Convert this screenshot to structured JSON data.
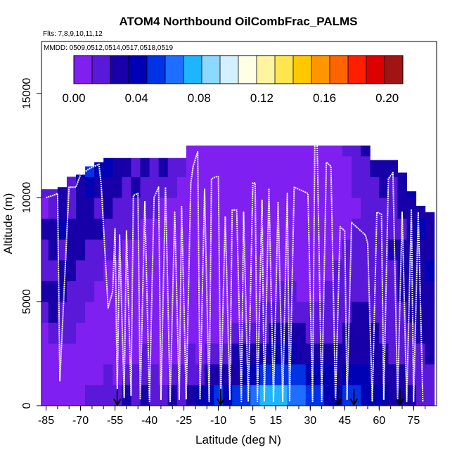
{
  "chart_data": {
    "type": "heatmap",
    "title": "ATOM4 Northbound OilCombFrac_PALMS",
    "flights_label": "Flts: 7,8,9,10,11,12",
    "dates_label": "MMDD: 0509,0512,0514,0517,0518,0519",
    "xlabel": "Latitude (deg N)",
    "ylabel": "Altitude (m)",
    "xlim": [
      -87,
      85
    ],
    "ylim": [
      0,
      17500
    ],
    "x_ticks": [
      -85,
      -70,
      -55,
      -40,
      -25,
      -10,
      5,
      15,
      30,
      45,
      60,
      75
    ],
    "y_ticks": [
      0,
      5000,
      10000,
      15000
    ],
    "colorbar": {
      "range": [
        0,
        0.21
      ],
      "tick_values": [
        0.0,
        0.04,
        0.08,
        0.12,
        0.16,
        0.2
      ],
      "tick_labels": [
        "0.00",
        "0.04",
        "0.08",
        "0.12",
        "0.16",
        "0.20"
      ],
      "colors": [
        "#7F1FF0",
        "#5A18D8",
        "#1800A8",
        "#0000B4",
        "#0032E6",
        "#1E6EFF",
        "#1EB4FF",
        "#8CD8FF",
        "#D2F0FF",
        "#FFFFE6",
        "#FFF5A0",
        "#FFE650",
        "#FFC800",
        "#FF9600",
        "#FF6400",
        "#FF1E00",
        "#DC0000",
        "#A01414"
      ]
    },
    "curtain_columns": [
      {
        "lat": -86,
        "top": 10400,
        "vals": [
          0.0,
          0.0,
          0.0,
          0.01,
          0.02,
          0.03,
          0.02,
          0.02,
          0.03,
          0.01,
          0.02
        ]
      },
      {
        "lat": -82,
        "top": 10400,
        "vals": [
          0.0,
          0.0,
          0.01,
          0.02,
          0.03,
          0.03,
          0.02,
          0.03,
          0.03,
          0.02,
          0.02
        ]
      },
      {
        "lat": -78,
        "top": 10500,
        "vals": [
          0.0,
          0.0,
          0.01,
          0.02,
          0.02,
          0.03,
          0.03,
          0.02,
          0.04,
          0.03,
          0.03
        ]
      },
      {
        "lat": -74,
        "top": 10800,
        "vals": [
          0.01,
          0.0,
          0.01,
          0.02,
          0.02,
          0.02,
          0.03,
          0.03,
          0.03,
          0.02,
          0.02,
          0.04
        ]
      },
      {
        "lat": -70,
        "top": 11100,
        "vals": [
          0.01,
          0.0,
          0.0,
          0.01,
          0.02,
          0.02,
          0.02,
          0.03,
          0.03,
          0.03,
          0.03,
          0.04
        ]
      },
      {
        "lat": -66,
        "top": 11500,
        "vals": [
          0.02,
          0.01,
          0.0,
          0.01,
          0.01,
          0.02,
          0.02,
          0.02,
          0.03,
          0.03,
          0.04,
          0.05
        ]
      },
      {
        "lat": -62,
        "top": 11700,
        "vals": [
          0.02,
          0.01,
          0.0,
          0.01,
          0.01,
          0.01,
          0.02,
          0.02,
          0.03,
          0.02,
          0.03,
          0.04
        ]
      },
      {
        "lat": -58,
        "top": 11900,
        "vals": [
          0.02,
          0.02,
          0.01,
          0.0,
          0.01,
          0.01,
          0.01,
          0.02,
          0.02,
          0.03,
          0.03,
          0.04
        ]
      },
      {
        "lat": -54,
        "top": 11900,
        "vals": [
          0.02,
          0.01,
          0.0,
          0.0,
          0.0,
          0.01,
          0.01,
          0.02,
          0.02,
          0.02,
          0.03,
          0.03
        ]
      },
      {
        "lat": -50,
        "top": 11900,
        "vals": [
          0.03,
          0.02,
          0.01,
          0.01,
          0.01,
          0.0,
          0.01,
          0.01,
          0.02,
          0.02,
          0.02,
          0.03
        ]
      },
      {
        "lat": -46,
        "top": 11900,
        "vals": [
          0.02,
          0.02,
          0.01,
          0.01,
          0.0,
          0.01,
          0.01,
          0.01,
          0.02,
          0.02,
          0.03,
          0.02
        ]
      },
      {
        "lat": -42,
        "top": 11900,
        "vals": [
          0.03,
          0.02,
          0.02,
          0.01,
          0.01,
          0.0,
          0.01,
          0.01,
          0.01,
          0.02,
          0.02,
          0.03
        ]
      },
      {
        "lat": -38,
        "top": 11900,
        "vals": [
          0.02,
          0.02,
          0.01,
          0.0,
          0.0,
          0.0,
          0.0,
          0.01,
          0.01,
          0.02,
          0.02,
          0.02
        ]
      },
      {
        "lat": -34,
        "top": 11900,
        "vals": [
          0.02,
          0.01,
          0.01,
          0.0,
          0.0,
          0.0,
          0.01,
          0.01,
          0.01,
          0.01,
          0.02,
          0.03
        ]
      },
      {
        "lat": -30,
        "top": 11900,
        "vals": [
          0.03,
          0.02,
          0.01,
          0.0,
          0.0,
          0.0,
          0.0,
          0.0,
          0.01,
          0.01,
          0.02,
          0.02
        ]
      },
      {
        "lat": -26,
        "top": 11900,
        "vals": [
          0.02,
          0.02,
          0.01,
          0.01,
          0.0,
          0.0,
          0.0,
          0.0,
          0.01,
          0.01,
          0.01,
          0.02
        ]
      },
      {
        "lat": -22,
        "top": 12500,
        "vals": [
          0.03,
          0.02,
          0.02,
          0.01,
          0.0,
          0.0,
          0.0,
          0.0,
          0.0,
          0.0,
          0.0,
          0.0,
          0.0
        ]
      },
      {
        "lat": -18,
        "top": 12500,
        "vals": [
          0.04,
          0.02,
          0.01,
          0.0,
          0.0,
          0.0,
          0.0,
          0.0,
          0.0,
          0.0,
          0.0,
          0.0,
          0.0
        ]
      },
      {
        "lat": -14,
        "top": 12500,
        "vals": [
          0.04,
          0.03,
          0.02,
          0.01,
          0.0,
          0.0,
          0.0,
          0.0,
          0.0,
          0.0,
          0.0,
          0.0,
          0.0
        ]
      },
      {
        "lat": -10,
        "top": 12500,
        "vals": [
          0.05,
          0.03,
          0.02,
          0.01,
          0.0,
          0.0,
          0.0,
          0.01,
          0.0,
          0.0,
          0.0,
          0.0,
          0.0
        ]
      },
      {
        "lat": -6,
        "top": 12500,
        "vals": [
          0.04,
          0.03,
          0.02,
          0.01,
          0.01,
          0.0,
          0.0,
          0.01,
          0.01,
          0.0,
          0.0,
          0.0,
          0.0
        ]
      },
      {
        "lat": -2,
        "top": 12500,
        "vals": [
          0.05,
          0.03,
          0.03,
          0.02,
          0.01,
          0.0,
          0.01,
          0.01,
          0.0,
          0.0,
          0.0,
          0.0,
          0.01
        ]
      },
      {
        "lat": 2,
        "top": 12500,
        "vals": [
          0.05,
          0.04,
          0.03,
          0.02,
          0.01,
          0.01,
          0.0,
          0.01,
          0.01,
          0.0,
          0.0,
          0.0,
          0.01
        ]
      },
      {
        "lat": 6,
        "top": 12500,
        "vals": [
          0.06,
          0.04,
          0.03,
          0.02,
          0.01,
          0.01,
          0.01,
          0.0,
          0.01,
          0.01,
          0.0,
          0.01,
          0.01
        ]
      },
      {
        "lat": 10,
        "top": 12500,
        "vals": [
          0.07,
          0.05,
          0.03,
          0.02,
          0.02,
          0.01,
          0.01,
          0.01,
          0.01,
          0.0,
          0.01,
          0.01,
          0.01
        ]
      },
      {
        "lat": 14,
        "top": 12500,
        "vals": [
          0.08,
          0.05,
          0.04,
          0.03,
          0.02,
          0.01,
          0.01,
          0.01,
          0.01,
          0.01,
          0.01,
          0.01,
          0.01
        ]
      },
      {
        "lat": 18,
        "top": 12500,
        "vals": [
          0.07,
          0.05,
          0.04,
          0.03,
          0.02,
          0.02,
          0.01,
          0.01,
          0.01,
          0.01,
          0.01,
          0.01,
          0.0
        ]
      },
      {
        "lat": 22,
        "top": 12500,
        "vals": [
          0.06,
          0.05,
          0.04,
          0.03,
          0.02,
          0.02,
          0.01,
          0.01,
          0.01,
          0.01,
          0.01,
          0.01,
          0.0
        ]
      },
      {
        "lat": 26,
        "top": 12500,
        "vals": [
          0.06,
          0.05,
          0.03,
          0.03,
          0.02,
          0.01,
          0.01,
          0.01,
          0.01,
          0.01,
          0.0,
          0.0,
          0.0
        ]
      },
      {
        "lat": 30,
        "top": 12500,
        "vals": [
          0.05,
          0.04,
          0.03,
          0.02,
          0.02,
          0.01,
          0.01,
          0.01,
          0.01,
          0.01,
          0.0,
          0.0,
          0.0
        ]
      },
      {
        "lat": 34,
        "top": 12500,
        "vals": [
          0.05,
          0.04,
          0.03,
          0.02,
          0.02,
          0.01,
          0.01,
          0.01,
          0.01,
          0.0,
          0.0,
          0.0,
          0.0
        ]
      },
      {
        "lat": 38,
        "top": 12500,
        "vals": [
          0.04,
          0.04,
          0.03,
          0.02,
          0.02,
          0.02,
          0.01,
          0.01,
          0.01,
          0.0,
          0.0,
          0.01,
          0.0
        ]
      },
      {
        "lat": 42,
        "top": 12500,
        "vals": [
          0.04,
          0.03,
          0.03,
          0.02,
          0.02,
          0.02,
          0.02,
          0.01,
          0.01,
          0.01,
          0.01,
          0.01,
          0.01
        ]
      },
      {
        "lat": 46,
        "top": 12500,
        "vals": [
          0.05,
          0.04,
          0.03,
          0.03,
          0.02,
          0.02,
          0.02,
          0.02,
          0.01,
          0.01,
          0.01,
          0.01,
          0.02
        ]
      },
      {
        "lat": 50,
        "top": 12500,
        "vals": [
          0.05,
          0.04,
          0.03,
          0.03,
          0.03,
          0.02,
          0.02,
          0.02,
          0.02,
          0.01,
          0.02,
          0.02,
          0.02
        ]
      },
      {
        "lat": 54,
        "top": 12500,
        "vals": [
          0.04,
          0.04,
          0.03,
          0.03,
          0.03,
          0.02,
          0.02,
          0.02,
          0.02,
          0.02,
          0.02,
          0.02,
          0.03
        ]
      },
      {
        "lat": 58,
        "top": 11800,
        "vals": [
          0.04,
          0.03,
          0.03,
          0.03,
          0.02,
          0.02,
          0.02,
          0.02,
          0.02,
          0.02,
          0.02,
          0.03
        ]
      },
      {
        "lat": 62,
        "top": 11800,
        "vals": [
          0.04,
          0.03,
          0.03,
          0.02,
          0.02,
          0.02,
          0.02,
          0.02,
          0.02,
          0.02,
          0.03,
          0.03
        ]
      },
      {
        "lat": 66,
        "top": 11800,
        "vals": [
          0.03,
          0.03,
          0.02,
          0.02,
          0.02,
          0.02,
          0.02,
          0.03,
          0.02,
          0.02,
          0.02,
          0.03
        ]
      },
      {
        "lat": 70,
        "top": 11200,
        "vals": [
          0.03,
          0.03,
          0.02,
          0.02,
          0.02,
          0.03,
          0.03,
          0.03,
          0.02,
          0.03,
          0.03,
          0.03
        ]
      },
      {
        "lat": 74,
        "top": 10300,
        "vals": [
          0.03,
          0.02,
          0.02,
          0.02,
          0.03,
          0.03,
          0.03,
          0.03,
          0.03,
          0.03,
          0.04
        ]
      },
      {
        "lat": 78,
        "top": 9600,
        "vals": [
          0.02,
          0.02,
          0.02,
          0.03,
          0.03,
          0.03,
          0.03,
          0.03,
          0.04,
          0.03
        ]
      },
      {
        "lat": 82,
        "top": 9300,
        "vals": [
          0.02,
          0.02,
          0.03,
          0.03,
          0.03,
          0.03,
          0.04,
          0.03,
          0.03,
          0.03
        ]
      }
    ],
    "flight_track": [
      [
        -85,
        10000
      ],
      [
        -82,
        10100
      ],
      [
        -80,
        10200
      ],
      [
        -79,
        1200
      ],
      [
        -75,
        10500
      ],
      [
        -72,
        10500
      ],
      [
        -70,
        11100
      ],
      [
        -66,
        11400
      ],
      [
        -62,
        11600
      ],
      [
        -61,
        10600
      ],
      [
        -60,
        8600
      ],
      [
        -58,
        4700
      ],
      [
        -56,
        5500
      ],
      [
        -55,
        8500
      ],
      [
        -54,
        700
      ],
      [
        -53,
        8200
      ],
      [
        -51,
        400
      ],
      [
        -50,
        8400
      ],
      [
        -48,
        500
      ],
      [
        -47,
        10100
      ],
      [
        -45,
        10200
      ],
      [
        -44,
        300
      ],
      [
        -42,
        9800
      ],
      [
        -40,
        200
      ],
      [
        -38,
        10000
      ],
      [
        -36,
        10500
      ],
      [
        -35,
        300
      ],
      [
        -33,
        10500
      ],
      [
        -31,
        200
      ],
      [
        -29,
        9300
      ],
      [
        -27,
        300
      ],
      [
        -26,
        9600
      ],
      [
        -24,
        300
      ],
      [
        -22,
        10700
      ],
      [
        -21,
        11500
      ],
      [
        -19,
        12200
      ],
      [
        -18,
        300
      ],
      [
        -16,
        10400
      ],
      [
        -14,
        200
      ],
      [
        -13,
        10900
      ],
      [
        -11,
        11000
      ],
      [
        -10,
        11000
      ],
      [
        -9,
        200
      ],
      [
        -7,
        9100
      ],
      [
        -5,
        300
      ],
      [
        -4,
        9400
      ],
      [
        -2,
        9400
      ],
      [
        0,
        200
      ],
      [
        1,
        9300
      ],
      [
        3,
        200
      ],
      [
        5,
        10700
      ],
      [
        6,
        10700
      ],
      [
        7,
        200
      ],
      [
        9,
        9900
      ],
      [
        10,
        200
      ],
      [
        12,
        10400
      ],
      [
        14,
        200
      ],
      [
        16,
        9800
      ],
      [
        18,
        200
      ],
      [
        20,
        10200
      ],
      [
        21,
        200
      ],
      [
        23,
        10500
      ],
      [
        25,
        10400
      ],
      [
        27,
        10300
      ],
      [
        29,
        10200
      ],
      [
        31,
        200
      ],
      [
        32,
        12800
      ],
      [
        33,
        12600
      ],
      [
        35,
        200
      ],
      [
        37,
        11700
      ],
      [
        39,
        11500
      ],
      [
        41,
        200
      ],
      [
        43,
        8600
      ],
      [
        45,
        8400
      ],
      [
        46,
        300
      ],
      [
        48,
        8800
      ],
      [
        50,
        8600
      ],
      [
        52,
        8400
      ],
      [
        54,
        8200
      ],
      [
        55,
        7800
      ],
      [
        57,
        200
      ],
      [
        59,
        9300
      ],
      [
        61,
        9200
      ],
      [
        62,
        300
      ],
      [
        64,
        10900
      ],
      [
        66,
        11200
      ],
      [
        68,
        300
      ],
      [
        70,
        9300
      ],
      [
        72,
        200
      ],
      [
        74,
        9400
      ],
      [
        75,
        200
      ],
      [
        77,
        9300
      ],
      [
        79,
        200
      ]
    ],
    "arrow_markers_lat": [
      -54,
      -9,
      42,
      49,
      69
    ]
  }
}
